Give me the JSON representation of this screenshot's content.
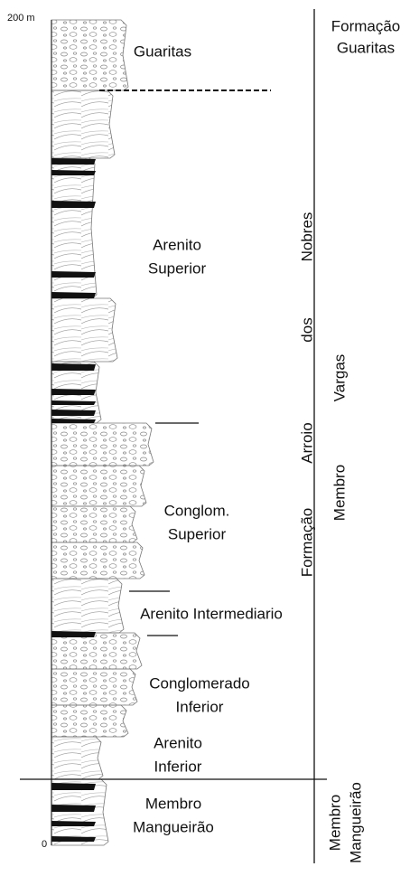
{
  "scale": {
    "top": "200 m",
    "bottom": "0"
  },
  "units": [
    {
      "lines": [
        "Guaritas"
      ]
    },
    {
      "lines": [
        "Arenito",
        "Superior"
      ]
    },
    {
      "lines": [
        "Conglom.",
        "Superior"
      ]
    },
    {
      "lines": [
        "Arenito Intermediario"
      ]
    },
    {
      "lines": [
        "Conglomerado",
        "Inferior"
      ]
    },
    {
      "lines": [
        "Arenito",
        "Inferior"
      ]
    },
    {
      "lines": [
        "Membro",
        "Mangueirão"
      ]
    }
  ],
  "formation_guaritas": [
    "Formação",
    "Guaritas"
  ],
  "formation_arroio": [
    "Formação",
    "Arroio",
    "dos",
    "Nobres"
  ],
  "membro_vargas": [
    "Membro",
    "Vargas"
  ],
  "membro_mangueirao": [
    "Membro",
    "Mangueirão"
  ]
}
